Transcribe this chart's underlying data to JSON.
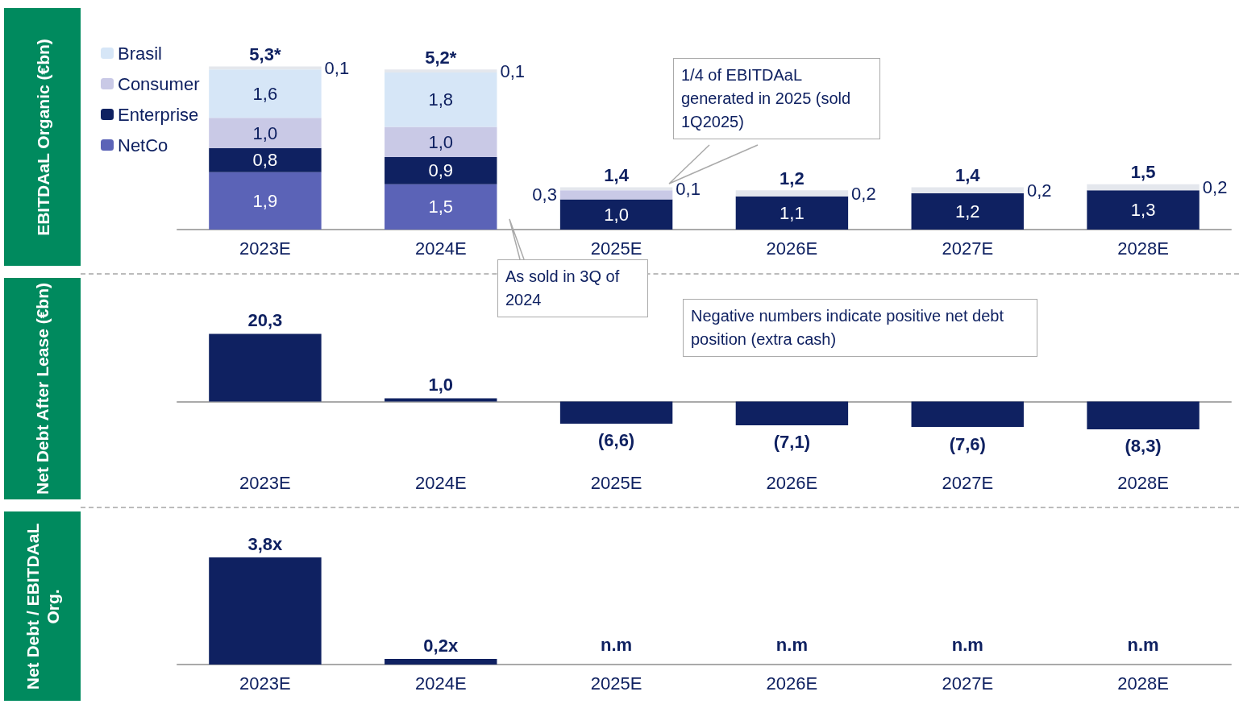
{
  "chart_data": [
    {
      "type": "bar",
      "ylabel": "EBITDAaL Organic (€bn)",
      "stacked": true,
      "legend": "left",
      "categories": [
        "2023E",
        "2024E",
        "2025E",
        "2026E",
        "2027E",
        "2028E"
      ],
      "series": [
        {
          "name": "NetCo",
          "color": "#5b63b7",
          "values": [
            1.9,
            1.5,
            null,
            null,
            null,
            null
          ],
          "value_labels": [
            "1,9",
            "1,5",
            null,
            null,
            null,
            null
          ]
        },
        {
          "name": "Enterprise",
          "color": "#0f2161",
          "values": [
            0.8,
            0.9,
            1.0,
            1.1,
            1.2,
            1.3
          ],
          "value_labels": [
            "0,8",
            "0,9",
            "1,0",
            "1,1",
            "1,2",
            "1,3"
          ]
        },
        {
          "name": "Consumer",
          "color": "#c9c9e6",
          "values": [
            1.0,
            1.0,
            0.3,
            null,
            null,
            null
          ],
          "value_labels": [
            "1,0",
            "1,0",
            "0,3",
            null,
            null,
            null
          ]
        },
        {
          "name": "Brasil",
          "color": "#d6e6f7",
          "values": [
            1.6,
            1.8,
            null,
            null,
            null,
            null
          ],
          "value_labels": [
            "1,6",
            "1,8",
            null,
            null,
            null,
            null
          ]
        },
        {
          "color": "#e4e7ed",
          "values": [
            0.1,
            0.1,
            0.1,
            0.2,
            0.2,
            0.2
          ],
          "value_labels": [
            "0,1",
            "0,1",
            "0,1",
            "0,2",
            "0,2",
            "0,2"
          ]
        }
      ],
      "totals": [
        "5,3*",
        "5,2*",
        "1,4",
        "1,2",
        "1,4",
        "1,5"
      ],
      "annotations": [
        "1/4 of EBITDAaL generated in 2025 (sold 1Q2025)",
        "As sold in 3Q of 2024"
      ]
    },
    {
      "type": "bar",
      "ylabel": "Net Debt After Lease (€bn)",
      "categories": [
        "2023E",
        "2024E",
        "2025E",
        "2026E",
        "2027E",
        "2028E"
      ],
      "series": [
        {
          "color": "#0f2161",
          "values": [
            20.3,
            1.0,
            -6.6,
            -7.1,
            -7.6,
            -8.3
          ],
          "value_labels": [
            "20,3",
            "1,0",
            "(6,6)",
            "(7,1)",
            "(7,6)",
            "(8,3)"
          ]
        }
      ],
      "annotations": [
        "Negative numbers indicate positive net debt position (extra cash)"
      ]
    },
    {
      "type": "bar",
      "ylabel": "Net Debt / EBITDAaL Org.",
      "categories": [
        "2023E",
        "2024E",
        "2025E",
        "2026E",
        "2027E",
        "2028E"
      ],
      "series": [
        {
          "color": "#0f2161",
          "values": [
            3.8,
            0.2,
            null,
            null,
            null,
            null
          ],
          "value_labels": [
            "3,8x",
            "0,2x",
            "n.m",
            "n.m",
            "n.m",
            "n.m"
          ]
        }
      ]
    }
  ]
}
